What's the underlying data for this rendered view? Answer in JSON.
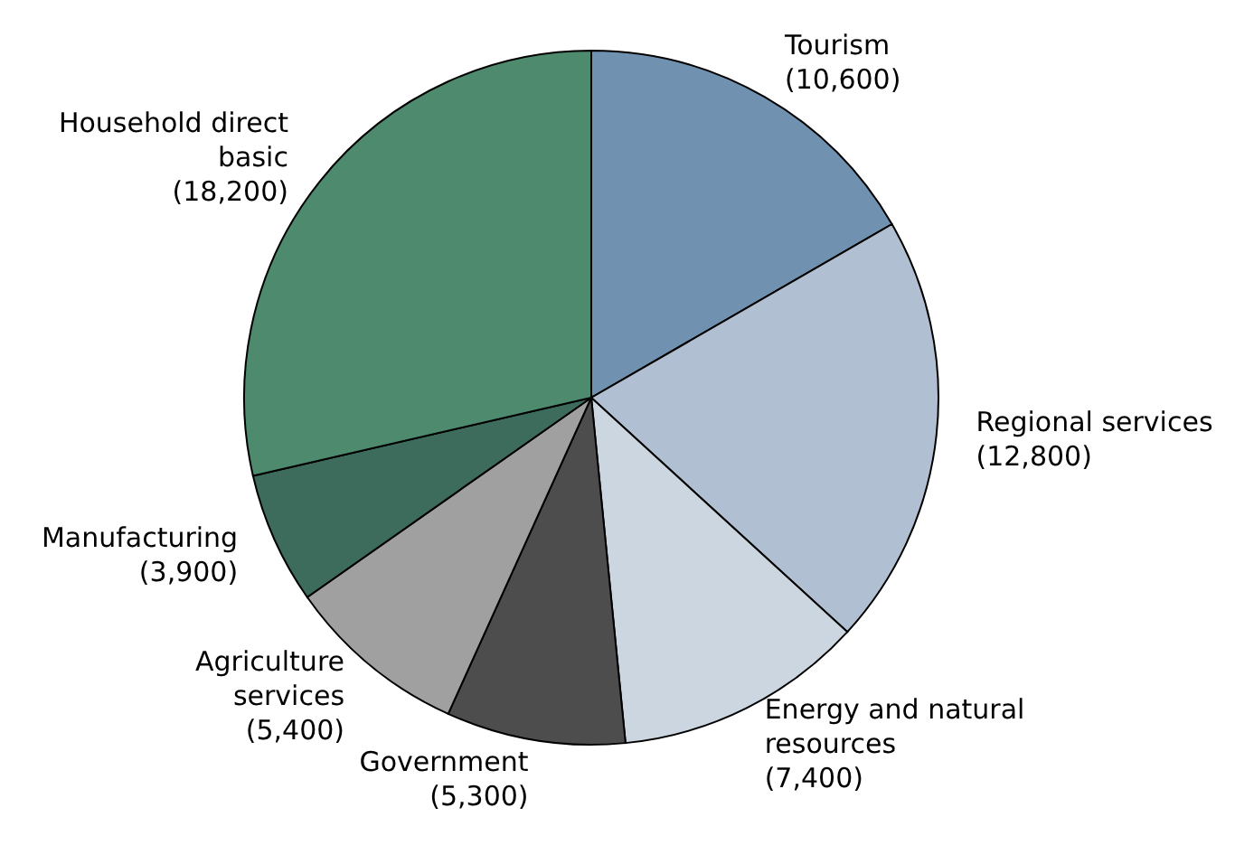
{
  "chart_data": {
    "type": "pie",
    "categories": [
      "Tourism",
      "Regional services",
      "Energy and natural resources",
      "Government",
      "Agriculture services",
      "Manufacturing",
      "Household direct basic"
    ],
    "values": [
      10600,
      12800,
      7400,
      5300,
      5400,
      3900,
      18200
    ],
    "value_labels": [
      "(10,600)",
      "(12,800)",
      "(7,400)",
      "(5,300)",
      "(5,400)",
      "(3,900)",
      "(18,200)"
    ],
    "colors": [
      "#7092b0",
      "#b0c0d2",
      "#ccd6e0",
      "#4d4d4d",
      "#a0a0a0",
      "#3d6b5c",
      "#4e8a6e"
    ]
  }
}
